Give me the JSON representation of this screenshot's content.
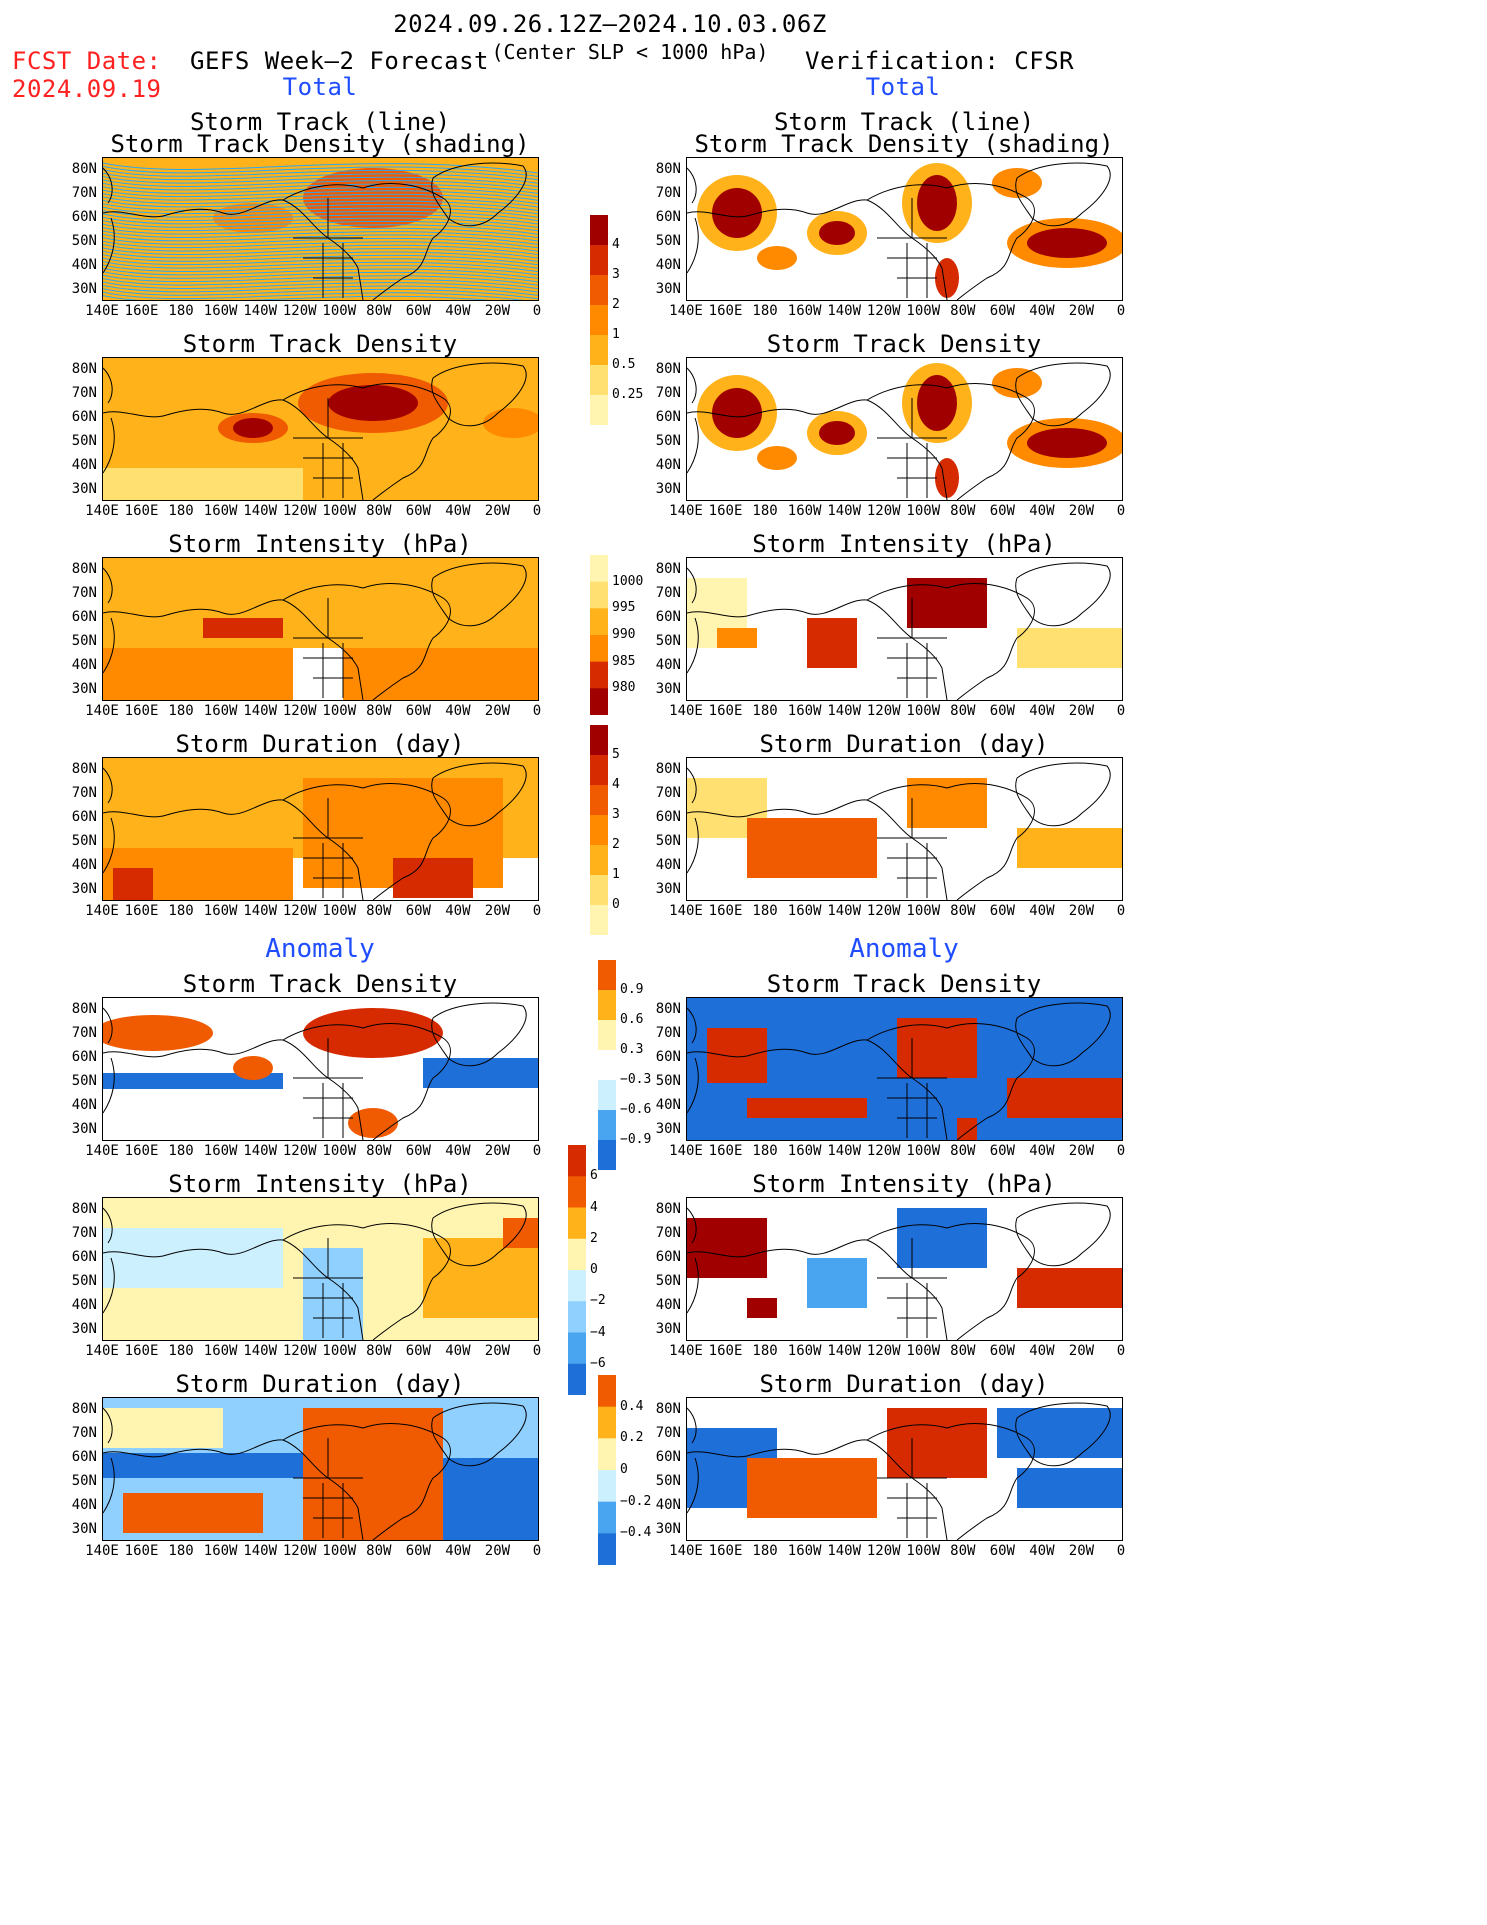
{
  "header": {
    "date_range": "2024.09.26.12Z–2024.10.03.06Z",
    "subtitle": "(Center SLP < 1000 hPa)",
    "fcst_label": "FCST Date:",
    "fcst_date": "2024.09.19",
    "left_title": "GEFS Week–2 Forecast",
    "right_title": "Verification: CFSR",
    "total_left": "Total",
    "total_right": "Total",
    "anomaly_left": "Anomaly",
    "anomaly_right": "Anomaly"
  },
  "panel_titles": {
    "track1": "Storm Track (line)",
    "track2": "Storm Track Density (shading)",
    "density": "Storm Track Density",
    "intensity": "Storm Intensity (hPa)",
    "duration": "Storm Duration (day)"
  },
  "axes": {
    "lat": [
      "80N",
      "70N",
      "60N",
      "50N",
      "40N",
      "30N"
    ],
    "lon": [
      "140E",
      "160E",
      "180",
      "160W",
      "140W",
      "120W",
      "100W",
      "80W",
      "60W",
      "40W",
      "20W",
      "0"
    ]
  },
  "colorbars": {
    "density_total": [
      "4",
      "3",
      "2",
      "1",
      "0.5",
      "0.25"
    ],
    "intensity_total": [
      "1000",
      "995",
      "990",
      "985",
      "980"
    ],
    "duration_total": [
      "5",
      "4",
      "3",
      "2",
      "1",
      "0"
    ],
    "density_anom": [
      "0.9",
      "0.6",
      "0.3",
      "−0.3",
      "−0.6",
      "−0.9"
    ],
    "intensity_anom": [
      "6",
      "4",
      "2",
      "0",
      "−2",
      "−4",
      "−6"
    ],
    "duration_anom": [
      "0.4",
      "0.2",
      "0",
      "−0.2",
      "−0.4"
    ]
  },
  "colors": {
    "warm": [
      "#fff5b0",
      "#ffe070",
      "#ffb21a",
      "#ff8a00",
      "#f05a00",
      "#d62a00",
      "#a00000"
    ],
    "cool": [
      "#cdf0ff",
      "#8fd0ff",
      "#4aa5f0",
      "#1f6fd8"
    ],
    "track_line": "#2aa8f0",
    "anomaly_text": "#1f4dff",
    "fcst_text": "#ff2020"
  }
}
